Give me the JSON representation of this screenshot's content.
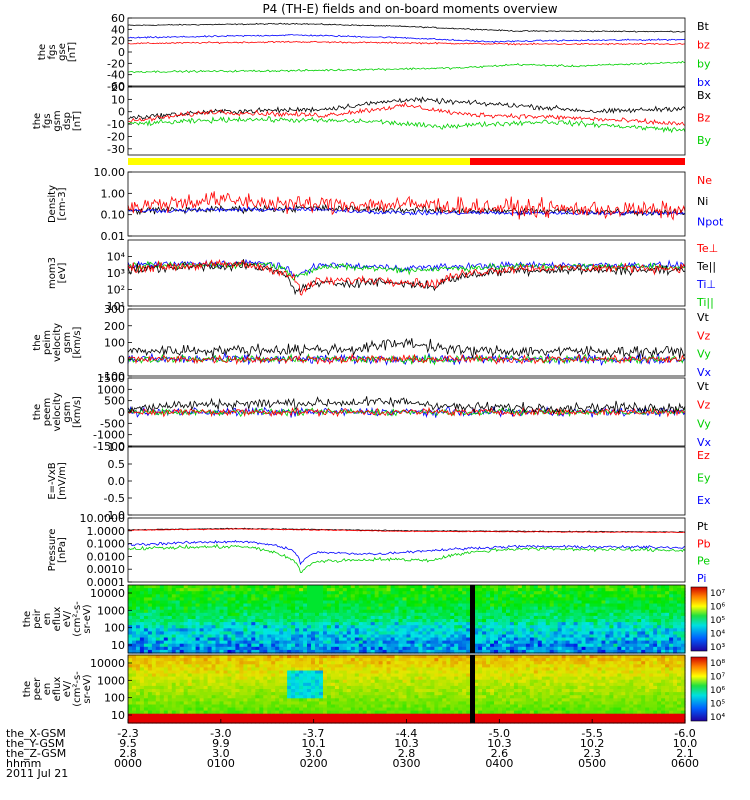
{
  "title": "P4 (TH-E) fields and on-board moments overview",
  "colors": {
    "black": "#000000",
    "red": "#ff0000",
    "green": "#00d000",
    "blue": "#0000ff",
    "yellow": "#ffff00"
  },
  "chart_data": [
    {
      "type": "line",
      "ylabel": [
        "the",
        "fgs",
        "gse",
        "[nT]"
      ],
      "ylim": [
        -60,
        60
      ],
      "ticks": [
        "60",
        "40",
        "20",
        "0",
        "-20",
        "-40",
        "-60"
      ],
      "tick_values": [
        60,
        40,
        20,
        0,
        -20,
        -40,
        -60
      ],
      "legend": [
        {
          "label": "Bt",
          "color": "black"
        },
        {
          "label": "bz",
          "color": "red"
        },
        {
          "label": "by",
          "color": "green"
        },
        {
          "label": "bx",
          "color": "blue"
        }
      ],
      "series": [
        {
          "name": "Bt",
          "color": "black",
          "points": [
            [
              0,
              47
            ],
            [
              0.3,
              50
            ],
            [
              0.5,
              45
            ],
            [
              0.7,
              37
            ],
            [
              1,
              36
            ]
          ],
          "noise": 1.5
        },
        {
          "name": "bz",
          "color": "red",
          "points": [
            [
              0,
              15
            ],
            [
              0.3,
              18
            ],
            [
              0.5,
              16
            ],
            [
              0.7,
              14
            ],
            [
              1,
              14
            ]
          ],
          "noise": 2
        },
        {
          "name": "bx",
          "color": "blue",
          "points": [
            [
              0,
              25
            ],
            [
              0.3,
              30
            ],
            [
              0.5,
              25
            ],
            [
              0.65,
              18
            ],
            [
              0.75,
              20
            ],
            [
              1,
              22
            ]
          ],
          "noise": 2
        },
        {
          "name": "by",
          "color": "green",
          "points": [
            [
              0,
              -35
            ],
            [
              0.3,
              -33
            ],
            [
              0.6,
              -28
            ],
            [
              0.7,
              -22
            ],
            [
              0.8,
              -25
            ],
            [
              1,
              -18
            ]
          ],
          "noise": 2.5
        }
      ]
    },
    {
      "type": "line",
      "ylabel": [
        "the",
        "fgs",
        "gsm",
        "dsp",
        "[nT]"
      ],
      "ylim": [
        -35,
        20
      ],
      "ticks": [
        "20",
        "10",
        "0",
        "-10",
        "-20",
        "-30"
      ],
      "tick_values": [
        20,
        10,
        0,
        -10,
        -20,
        -30
      ],
      "legend": [
        {
          "label": "Bx",
          "color": "black"
        },
        {
          "label": "Bz",
          "color": "red"
        },
        {
          "label": "By",
          "color": "green"
        }
      ],
      "series": [
        {
          "name": "Bx",
          "color": "black",
          "points": [
            [
              0,
              -5
            ],
            [
              0.15,
              0
            ],
            [
              0.35,
              2
            ],
            [
              0.5,
              10
            ],
            [
              0.7,
              5
            ],
            [
              0.85,
              0
            ],
            [
              1,
              3
            ]
          ],
          "noise": 3
        },
        {
          "name": "Bz",
          "color": "red",
          "points": [
            [
              0,
              -8
            ],
            [
              0.15,
              0
            ],
            [
              0.35,
              -3
            ],
            [
              0.5,
              5
            ],
            [
              0.6,
              -2
            ],
            [
              0.8,
              -5
            ],
            [
              1,
              -10
            ]
          ],
          "noise": 3
        },
        {
          "name": "By",
          "color": "green",
          "points": [
            [
              0,
              -10
            ],
            [
              0.2,
              -6
            ],
            [
              0.45,
              -8
            ],
            [
              0.55,
              -12
            ],
            [
              0.75,
              -8
            ],
            [
              1,
              -15
            ]
          ],
          "noise": 3
        }
      ]
    },
    {
      "type": "line",
      "ylabel": [
        "Density",
        "[cm-3]"
      ],
      "ylim": [
        0.01,
        10
      ],
      "log": true,
      "ticks": [
        "10.00",
        "1.00",
        "0.10",
        "0.01"
      ],
      "tick_values": [
        10,
        1,
        0.1,
        0.01
      ],
      "legend": [
        {
          "label": "Ne",
          "color": "red"
        },
        {
          "label": "Ni",
          "color": "black"
        },
        {
          "label": "Npot",
          "color": "blue"
        }
      ],
      "series": [
        {
          "name": "Ni",
          "color": "black",
          "points": [
            [
              0,
              0.15
            ],
            [
              0.3,
              0.2
            ],
            [
              0.6,
              0.15
            ],
            [
              1,
              0.13
            ]
          ],
          "noise": 0.25,
          "log": true
        },
        {
          "name": "Npot",
          "color": "blue",
          "points": [
            [
              0,
              0.15
            ],
            [
              0.3,
              0.18
            ],
            [
              0.5,
              0.12
            ],
            [
              1,
              0.12
            ]
          ],
          "noise": 0.15,
          "log": true
        },
        {
          "name": "Ne",
          "color": "red",
          "points": [
            [
              0,
              0.2
            ],
            [
              0.15,
              0.5
            ],
            [
              0.3,
              0.3
            ],
            [
              0.5,
              0.3
            ],
            [
              0.7,
              0.2
            ],
            [
              1,
              0.15
            ]
          ],
          "noise": 0.6,
          "log": true
        }
      ]
    },
    {
      "type": "line",
      "ylabel": [
        "mom3",
        "[eV]"
      ],
      "ylim": [
        10,
        100000
      ],
      "log": true,
      "ticks": [
        "10⁴",
        "10³",
        "10²",
        "10¹"
      ],
      "tick_values": [
        10000,
        1000,
        100,
        10
      ],
      "legend": [
        {
          "label": "Te⊥",
          "color": "red"
        },
        {
          "label": "Te||",
          "color": "black"
        },
        {
          "label": "Ti⊥",
          "color": "blue"
        },
        {
          "label": "Ti||",
          "color": "green"
        }
      ],
      "series": [
        {
          "name": "Ti⊥",
          "color": "blue",
          "points": [
            [
              0,
              3000
            ],
            [
              0.25,
              4000
            ],
            [
              0.3,
              500
            ],
            [
              0.35,
              3000
            ],
            [
              0.5,
              2000
            ],
            [
              0.7,
              3000
            ],
            [
              1,
              3000
            ]
          ],
          "noise": 0.3,
          "log": true
        },
        {
          "name": "Ti||",
          "color": "green",
          "points": [
            [
              0,
              2500
            ],
            [
              0.25,
              3500
            ],
            [
              0.3,
              400
            ],
            [
              0.35,
              2500
            ],
            [
              0.5,
              1500
            ],
            [
              0.7,
              2500
            ],
            [
              1,
              2500
            ]
          ],
          "noise": 0.3,
          "log": true
        },
        {
          "name": "Te||",
          "color": "black",
          "points": [
            [
              0,
              1500
            ],
            [
              0.2,
              3000
            ],
            [
              0.28,
              800
            ],
            [
              0.3,
              50
            ],
            [
              0.33,
              200
            ],
            [
              0.45,
              300
            ],
            [
              0.55,
              150
            ],
            [
              0.7,
              1500
            ],
            [
              1,
              1500
            ]
          ],
          "noise": 0.4,
          "log": true
        },
        {
          "name": "Te⊥",
          "color": "red",
          "points": [
            [
              0,
              2000
            ],
            [
              0.2,
              3500
            ],
            [
              0.28,
              1000
            ],
            [
              0.31,
              40
            ],
            [
              0.34,
              300
            ],
            [
              0.45,
              400
            ],
            [
              0.55,
              200
            ],
            [
              0.7,
              2000
            ],
            [
              1,
              2000
            ]
          ],
          "noise": 0.4,
          "log": true
        }
      ]
    },
    {
      "type": "line",
      "ylabel": [
        "the",
        "peim",
        "velocity",
        "gsm",
        "[km/s]"
      ],
      "ylim": [
        -100,
        300
      ],
      "ticks": [
        "300",
        "200",
        "100",
        "0",
        "-100"
      ],
      "tick_values": [
        300,
        200,
        100,
        0,
        -100
      ],
      "legend": [
        {
          "label": "Vt",
          "color": "black"
        },
        {
          "label": "Vz",
          "color": "red"
        },
        {
          "label": "Vy",
          "color": "green"
        },
        {
          "label": "Vx",
          "color": "blue"
        }
      ],
      "series": [
        {
          "name": "Vx",
          "color": "blue",
          "points": [
            [
              0,
              0
            ],
            [
              1,
              0
            ]
          ],
          "noise": 40
        },
        {
          "name": "Vy",
          "color": "green",
          "points": [
            [
              0,
              0
            ],
            [
              1,
              0
            ]
          ],
          "noise": 35
        },
        {
          "name": "Vz",
          "color": "red",
          "points": [
            [
              0,
              0
            ],
            [
              1,
              0
            ]
          ],
          "noise": 35
        },
        {
          "name": "Vt",
          "color": "black",
          "points": [
            [
              0,
              50
            ],
            [
              0.4,
              60
            ],
            [
              0.5,
              100
            ],
            [
              0.6,
              50
            ],
            [
              1,
              45
            ]
          ],
          "noise": 50
        }
      ]
    },
    {
      "type": "line",
      "ylabel": [
        "the",
        "peem",
        "velocity",
        "gsm",
        "[km/s]"
      ],
      "ylim": [
        -1500,
        1500
      ],
      "ticks": [
        "1500",
        "1000",
        "500",
        "0",
        "-500",
        "-1000",
        "-1500"
      ],
      "tick_values": [
        1500,
        1000,
        500,
        0,
        -500,
        -1000,
        -1500
      ],
      "legend": [
        {
          "label": "Vt",
          "color": "black"
        },
        {
          "label": "Vz",
          "color": "red"
        },
        {
          "label": "Vy",
          "color": "green"
        },
        {
          "label": "Vx",
          "color": "blue"
        }
      ],
      "series": [
        {
          "name": "Vx",
          "color": "blue",
          "points": [
            [
              0,
              0
            ],
            [
              1,
              0
            ]
          ],
          "noise": 260
        },
        {
          "name": "Vy",
          "color": "green",
          "points": [
            [
              0,
              0
            ],
            [
              1,
              0
            ]
          ],
          "noise": 220
        },
        {
          "name": "Vz",
          "color": "red",
          "points": [
            [
              0,
              0
            ],
            [
              1,
              0
            ]
          ],
          "noise": 240
        },
        {
          "name": "Vt",
          "color": "black",
          "points": [
            [
              0,
              200
            ],
            [
              0.15,
              350
            ],
            [
              0.5,
              450
            ],
            [
              0.6,
              200
            ],
            [
              1,
              200
            ]
          ],
          "noise": 320
        }
      ]
    },
    {
      "type": "line",
      "ylabel": [
        "E=-VxB",
        "[mV/m]"
      ],
      "ylim": [
        -1,
        1
      ],
      "ticks": [
        "1.0",
        "0.5",
        "0.0",
        "-0.5",
        "-1.0"
      ],
      "tick_values": [
        1,
        0.5,
        0,
        -0.5,
        -1
      ],
      "legend": [
        {
          "label": "Ez",
          "color": "red"
        },
        {
          "label": "Ey",
          "color": "green"
        },
        {
          "label": "Ex",
          "color": "blue"
        }
      ],
      "series": []
    },
    {
      "type": "line",
      "ylabel": [
        "Pressure",
        "[nPa]"
      ],
      "ylim": [
        0.0001,
        10
      ],
      "log": true,
      "ticks": [
        "10.0000",
        "1.0000",
        "0.1000",
        "0.0100",
        "0.0010",
        "0.0001"
      ],
      "tick_values": [
        10,
        1,
        0.1,
        0.01,
        0.001,
        0.0001
      ],
      "legend": [
        {
          "label": "Pt",
          "color": "black"
        },
        {
          "label": "Pb",
          "color": "red"
        },
        {
          "label": "Pe",
          "color": "green"
        },
        {
          "label": "Pi",
          "color": "blue"
        }
      ],
      "series": [
        {
          "name": "Pt",
          "color": "black",
          "points": [
            [
              0,
              1.2
            ],
            [
              0.2,
              1.5
            ],
            [
              0.5,
              1.0
            ],
            [
              1,
              0.8
            ]
          ],
          "noise": 0.05,
          "log": true
        },
        {
          "name": "Pb",
          "color": "red",
          "points": [
            [
              0,
              1.1
            ],
            [
              0.2,
              1.4
            ],
            [
              0.5,
              0.9
            ],
            [
              1,
              0.75
            ]
          ],
          "noise": 0.05,
          "log": true
        },
        {
          "name": "Pi",
          "color": "blue",
          "points": [
            [
              0,
              0.08
            ],
            [
              0.2,
              0.15
            ],
            [
              0.28,
              0.05
            ],
            [
              0.31,
              0.002
            ],
            [
              0.34,
              0.02
            ],
            [
              0.45,
              0.015
            ],
            [
              0.55,
              0.03
            ],
            [
              0.7,
              0.06
            ],
            [
              1,
              0.05
            ]
          ],
          "noise": 0.15,
          "log": true
        },
        {
          "name": "Pe",
          "color": "green",
          "points": [
            [
              0,
              0.04
            ],
            [
              0.2,
              0.06
            ],
            [
              0.28,
              0.01
            ],
            [
              0.31,
              0.0003
            ],
            [
              0.34,
              0.004
            ],
            [
              0.45,
              0.006
            ],
            [
              0.55,
              0.005
            ],
            [
              0.7,
              0.04
            ],
            [
              1,
              0.03
            ]
          ],
          "noise": 0.2,
          "log": true
        }
      ]
    },
    {
      "type": "heatmap",
      "ylabel": [
        "the",
        "peir",
        "en",
        "eflux",
        "eV/",
        "(cm²-s-",
        "sr-eV)"
      ],
      "ticks": [
        "10000",
        "1000",
        "100",
        "10"
      ],
      "colorbar": [
        "10⁷",
        "10⁶",
        "10⁵",
        "10⁴",
        "10³"
      ]
    },
    {
      "type": "heatmap",
      "ylabel": [
        "the",
        "peer",
        "en",
        "eflux",
        "eV/",
        "(cm²-s-",
        "sr-eV)"
      ],
      "ticks": [
        "10000",
        "1000",
        "100",
        "10"
      ],
      "colorbar": [
        "10⁸",
        "10⁷",
        "10⁶",
        "10⁵",
        "10⁴"
      ]
    }
  ],
  "x_axis": {
    "labels": [
      "the_X-GSM",
      "the_Y-GSM",
      "the_Z-GSM",
      "hhmm",
      "2011 Jul 21"
    ],
    "columns": [
      [
        "-2.3",
        "9.5",
        "2.8",
        "0000"
      ],
      [
        "-3.0",
        "9.9",
        "3.0",
        "0100"
      ],
      [
        "-3.7",
        "10.1",
        "3.0",
        "0200"
      ],
      [
        "-4.4",
        "10.3",
        "2.8",
        "0300"
      ],
      [
        "-5.0",
        "10.3",
        "2.6",
        "0400"
      ],
      [
        "-5.5",
        "10.2",
        "2.3",
        "0500"
      ],
      [
        "-6.0",
        "10.0",
        "2.1",
        "0600"
      ]
    ]
  }
}
